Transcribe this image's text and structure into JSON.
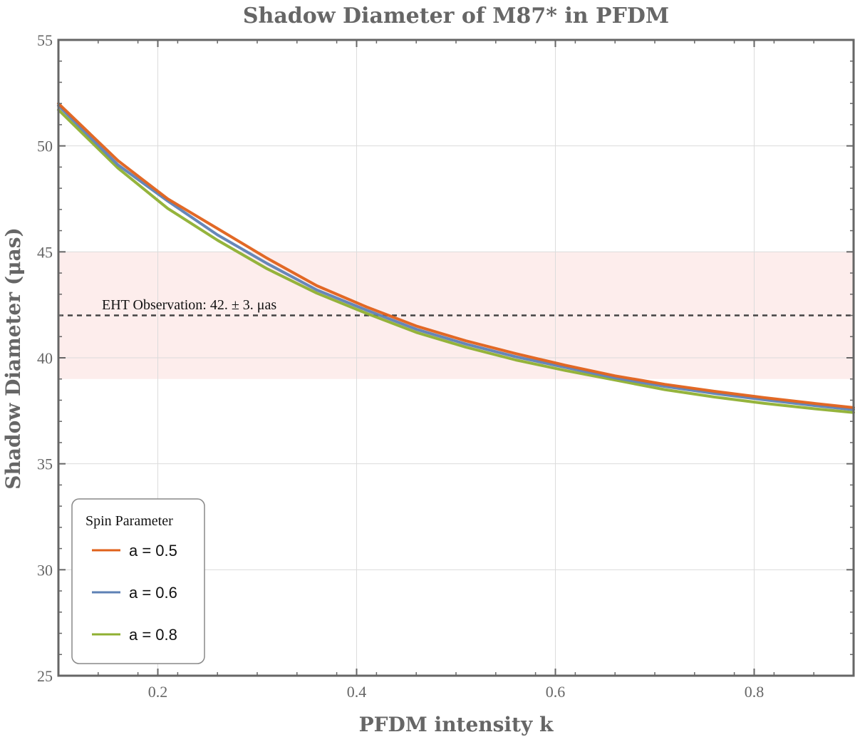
{
  "chart_data": {
    "type": "line",
    "title": "Shadow Diameter of M87* in PFDM",
    "xlabel": "PFDM intensity k",
    "ylabel": "Shadow Diameter (μas)",
    "xlim": [
      0.1,
      0.9
    ],
    "ylim": [
      25,
      55
    ],
    "x_ticks": [
      0.2,
      0.4,
      0.6,
      0.8
    ],
    "x_tick_labels": [
      "0.2",
      "0.4",
      "0.6",
      "0.8"
    ],
    "y_ticks": [
      25,
      30,
      35,
      40,
      45,
      50,
      55
    ],
    "y_tick_labels": [
      "25",
      "30",
      "35",
      "40",
      "45",
      "50",
      "55"
    ],
    "grid": true,
    "x": [
      0.1,
      0.16,
      0.21,
      0.26,
      0.31,
      0.36,
      0.41,
      0.46,
      0.51,
      0.56,
      0.61,
      0.66,
      0.71,
      0.76,
      0.81,
      0.86,
      0.9
    ],
    "series": [
      {
        "name": "a = 0.5",
        "color": "#E0611A",
        "values": [
          52.0,
          49.3,
          47.5,
          46.1,
          44.7,
          43.4,
          42.4,
          41.5,
          40.8,
          40.2,
          39.65,
          39.15,
          38.75,
          38.42,
          38.12,
          37.85,
          37.65
        ]
      },
      {
        "name": "a = 0.6",
        "color": "#5E81B5",
        "values": [
          51.9,
          49.1,
          47.4,
          45.8,
          44.45,
          43.2,
          42.25,
          41.35,
          40.65,
          40.05,
          39.55,
          39.05,
          38.65,
          38.32,
          38.02,
          37.75,
          37.55
        ]
      },
      {
        "name": "a = 0.8",
        "color": "#8FB032",
        "values": [
          51.7,
          48.95,
          47.05,
          45.55,
          44.2,
          43.05,
          42.1,
          41.2,
          40.5,
          39.9,
          39.4,
          38.95,
          38.5,
          38.15,
          37.85,
          37.6,
          37.42
        ]
      }
    ],
    "band": {
      "center": 42,
      "error": 3,
      "lower": 39,
      "upper": 45,
      "color": "#FDEDEC"
    },
    "reference_line": {
      "y": 42,
      "style": "dashed",
      "color": "#444444"
    },
    "annotation": "EHT Observation: 42. ± 3. μas",
    "legend": {
      "title": "Spin Parameter",
      "placement": "bottom-left",
      "entries": [
        "a = 0.5",
        "a = 0.6",
        "a = 0.8"
      ]
    }
  }
}
